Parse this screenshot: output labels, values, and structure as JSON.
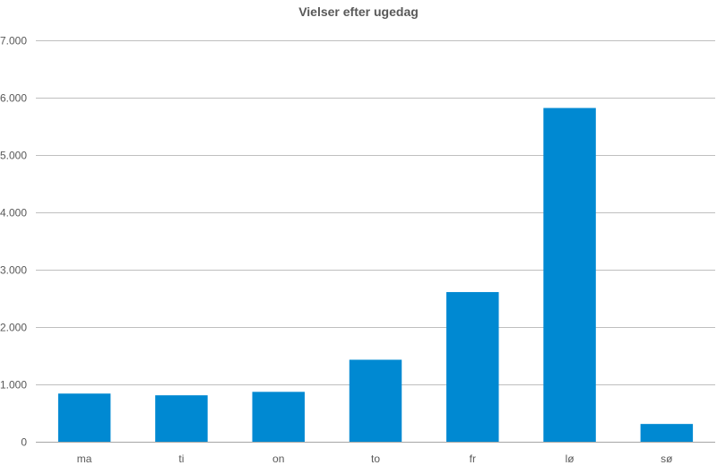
{
  "chart_data": {
    "type": "bar",
    "title": "Vielser efter ugedag",
    "xlabel": "",
    "ylabel": "",
    "categories": [
      "ma",
      "ti",
      "on",
      "to",
      "fr",
      "lø",
      "sø"
    ],
    "values": [
      840,
      810,
      870,
      1430,
      2610,
      5820,
      310
    ],
    "ylim": [
      0,
      7000
    ],
    "yticks": [
      0,
      1000,
      2000,
      3000,
      4000,
      5000,
      6000,
      7000
    ],
    "ytick_labels": [
      "0",
      "1.000",
      "2.000",
      "3.000",
      "4.000",
      "5.000",
      "6.000",
      "7.000"
    ],
    "grid": true,
    "legend": "none",
    "colors": {
      "bar": "#0089D2",
      "grid": "#BFBFBF",
      "axis": "#A6A6A6",
      "text": "#595959"
    }
  }
}
